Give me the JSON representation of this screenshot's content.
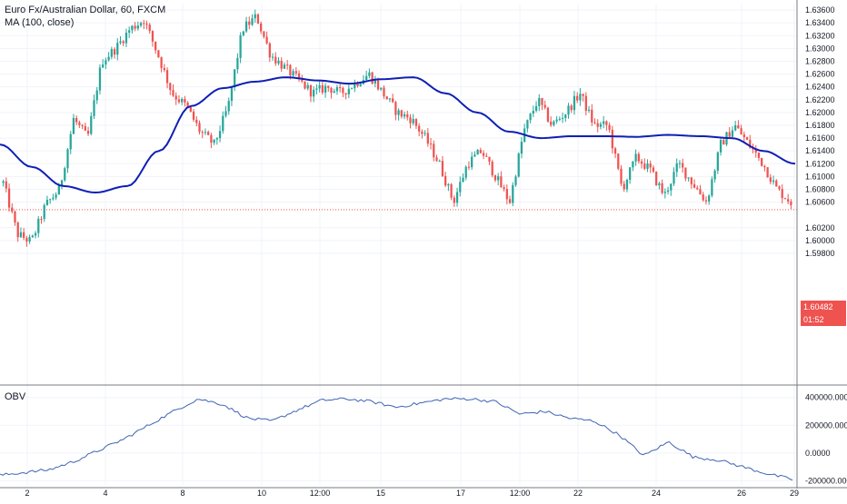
{
  "chart_data": {
    "type": "candlestick",
    "symbol_title": "Euro Fx/Australian Dollar, 60, FXCM",
    "indicator_label": "MA (100, close)",
    "price_axis": {
      "ylim": [
        1.578,
        1.637
      ],
      "ticks": [
        "1.63600",
        "1.63400",
        "1.63200",
        "1.63000",
        "1.62800",
        "1.62600",
        "1.62400",
        "1.62200",
        "1.62000",
        "1.61800",
        "1.61600",
        "1.61400",
        "1.61200",
        "1.61000",
        "1.60800",
        "1.60600",
        "1.60200",
        "1.60000",
        "1.59800"
      ]
    },
    "last_price": "1.60482",
    "countdown": "01:52",
    "x_axis_labels": [
      "2",
      "4",
      "8",
      "10",
      "12:00",
      "15",
      "17",
      "12:00",
      "22",
      "24",
      "26",
      "29"
    ],
    "candle_anchors": [
      1.609,
      1.601,
      1.5998,
      1.6055,
      1.608,
      1.619,
      1.616,
      1.628,
      1.63,
      1.633,
      1.6345,
      1.629,
      1.623,
      1.621,
      1.617,
      1.615,
      1.621,
      1.633,
      1.635,
      1.629,
      1.627,
      1.625,
      1.623,
      1.624,
      1.623,
      1.6245,
      1.626,
      1.623,
      1.62,
      1.619,
      1.616,
      1.612,
      1.606,
      1.612,
      1.614,
      1.61,
      1.606,
      1.617,
      1.622,
      1.618,
      1.62,
      1.623,
      1.618,
      1.618,
      1.608,
      1.613,
      1.611,
      1.607,
      1.612,
      1.609,
      1.606,
      1.615,
      1.618,
      1.615,
      1.612,
      1.608,
      1.606
    ],
    "ma_label": "MA (100, close)",
    "ma_anchors": [
      1.615,
      1.6115,
      1.6085,
      1.6075,
      1.6085,
      1.614,
      1.621,
      1.6238,
      1.6248,
      1.6255,
      1.625,
      1.6245,
      1.6252,
      1.6255,
      1.623,
      1.62,
      1.617,
      1.616,
      1.6163,
      1.6163,
      1.6162,
      1.6165,
      1.6163,
      1.616,
      1.614,
      1.612
    ],
    "obv": {
      "label": "OBV",
      "ylim": [
        -230000,
        470000
      ],
      "ticks": [
        "400000.0000",
        "200000.0000",
        "0.0000",
        "-200000.0000"
      ],
      "anchors": [
        -160000,
        -140000,
        -120000,
        -60000,
        20000,
        100000,
        200000,
        300000,
        390000,
        350000,
        250000,
        230000,
        310000,
        380000,
        390000,
        370000,
        330000,
        360000,
        390000,
        390000,
        370000,
        280000,
        300000,
        250000,
        230000,
        130000,
        -20000,
        80000,
        -30000,
        -50000,
        -100000,
        -150000,
        -190000
      ]
    },
    "colors": {
      "up": "#26a69a",
      "down": "#ef5350",
      "ma": "#0f1fb5",
      "obv": "#3f63b4",
      "price_line": "#ef5350"
    }
  }
}
